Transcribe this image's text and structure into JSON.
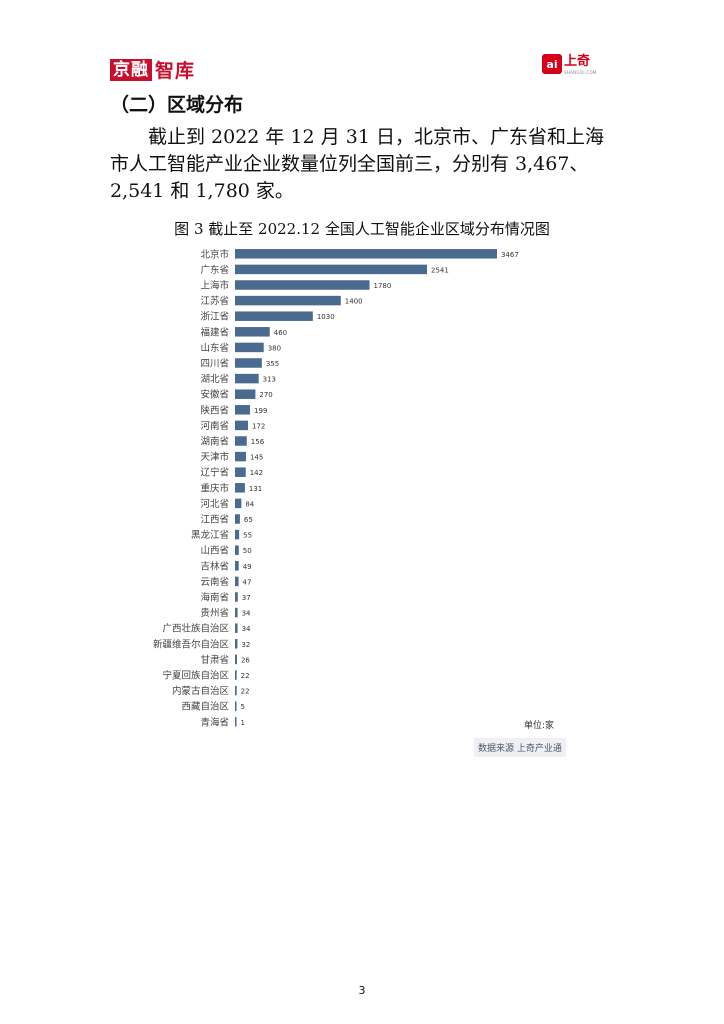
{
  "header": {
    "left_logo_box": "京融",
    "left_logo_text": "智库",
    "right_logo_mark": "ai",
    "right_logo_name": "上奇",
    "right_logo_domain": "SHANGQI.COM"
  },
  "section_title": "（二）区域分布",
  "paragraph": "截止到 2022 年 12 月 31 日，北京市、广东省和上海市人工智能产业企业数量位列全国前三，分别有 3,467、2,541 和 1,780 家。",
  "chart_data": {
    "type": "bar",
    "orientation": "horizontal",
    "title": "图 3 截止至 2022.12 全国人工智能企业区域分布情况图",
    "categories": [
      "北京市",
      "广东省",
      "上海市",
      "江苏省",
      "浙江省",
      "福建省",
      "山东省",
      "四川省",
      "湖北省",
      "安徽省",
      "陕西省",
      "河南省",
      "湖南省",
      "天津市",
      "辽宁省",
      "重庆市",
      "河北省",
      "江西省",
      "黑龙江省",
      "山西省",
      "吉林省",
      "云南省",
      "海南省",
      "贵州省",
      "广西壮族自治区",
      "新疆维吾尔自治区",
      "甘肃省",
      "宁夏回族自治区",
      "内蒙古自治区",
      "西藏自治区",
      "青海省"
    ],
    "values": [
      3467,
      2541,
      1780,
      1400,
      1030,
      460,
      380,
      355,
      313,
      270,
      199,
      172,
      156,
      145,
      142,
      131,
      84,
      65,
      55,
      50,
      49,
      47,
      37,
      34,
      34,
      32,
      26,
      22,
      22,
      5,
      1
    ],
    "unit": "单位:家",
    "source": "数据来源 上奇产业通",
    "color": "#4a6a8f"
  },
  "page_number": "3"
}
